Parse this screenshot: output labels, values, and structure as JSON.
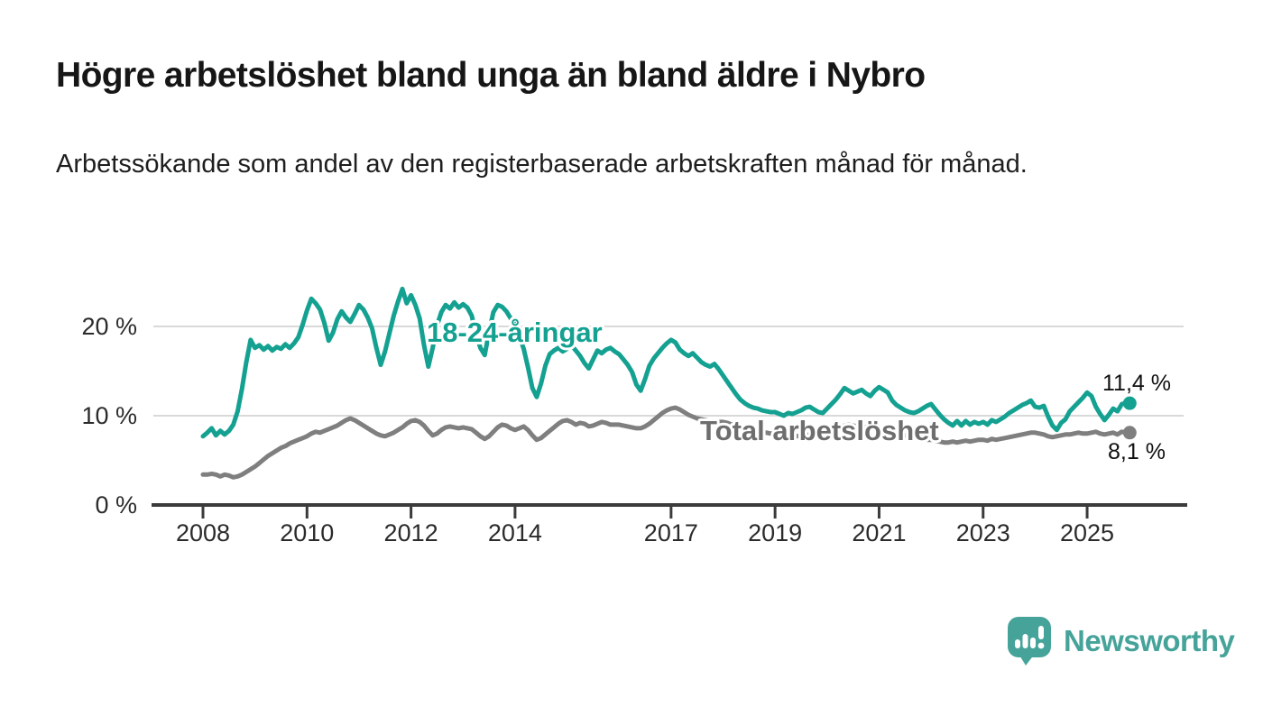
{
  "title": "Högre arbetslöshet bland unga än bland äldre i Nybro",
  "subtitle": "Arbetssökande som andel av den registerbaserade arbetskraften månad för månad.",
  "branding": {
    "logo_text": "Newsworthy",
    "logo_icon": "bar-chart-speech-bubble-icon",
    "logo_color": "#46a39a"
  },
  "colors": {
    "young_series": "#14a191",
    "total_series": "#7f7f7f",
    "total_label_text": "#6e6e6e",
    "gridline": "#d9d9d9",
    "axis": "#3b3b3b",
    "tick_text": "#2b2b2b"
  },
  "chart_data": {
    "type": "line",
    "frequency": "monthly",
    "x_start": "2008-01",
    "x_end": "2025-10",
    "x_tick_years": [
      2008,
      2010,
      2012,
      2014,
      2017,
      2019,
      2021,
      2023,
      2025
    ],
    "x_tick_labels": [
      "2008",
      "2010",
      "2012",
      "2014",
      "2017",
      "2019",
      "2021",
      "2023",
      "2025"
    ],
    "y_ticks": [
      {
        "value": 0,
        "label": "0 %"
      },
      {
        "value": 10,
        "label": "10 %"
      },
      {
        "value": 20,
        "label": "20 %"
      }
    ],
    "ylim": [
      0,
      25
    ],
    "grid": "horizontal",
    "legend_position": "inline-labels",
    "series": [
      {
        "name": "18-24-åringar",
        "color": "#14a191",
        "end_label": "11,4 %",
        "last_value": 11.4,
        "values": [
          7.7,
          8.1,
          8.6,
          7.8,
          8.3,
          7.9,
          8.3,
          9.0,
          10.5,
          13.0,
          16.0,
          18.5,
          17.6,
          17.9,
          17.4,
          17.8,
          17.3,
          17.7,
          17.5,
          18.0,
          17.6,
          18.1,
          18.8,
          20.2,
          21.8,
          23.1,
          22.6,
          21.9,
          20.4,
          18.4,
          19.3,
          20.8,
          21.7,
          21.0,
          20.5,
          21.4,
          22.4,
          21.9,
          21.0,
          19.8,
          17.6,
          15.7,
          17.2,
          19.2,
          21.2,
          22.8,
          24.2,
          22.6,
          23.5,
          22.4,
          20.9,
          17.9,
          15.5,
          17.6,
          20.1,
          21.6,
          22.4,
          22.0,
          22.7,
          22.1,
          22.5,
          22.1,
          21.2,
          19.2,
          17.6,
          16.8,
          19.4,
          21.6,
          22.4,
          22.2,
          21.7,
          20.9,
          20.3,
          18.9,
          17.5,
          15.4,
          13.1,
          12.1,
          13.6,
          15.6,
          16.9,
          17.3,
          17.6,
          17.2,
          17.5,
          17.9,
          17.3,
          16.7,
          15.9,
          15.3,
          16.3,
          17.3,
          17.0,
          17.4,
          17.6,
          17.2,
          16.9,
          16.3,
          15.7,
          14.9,
          13.5,
          12.8,
          14.1,
          15.6,
          16.4,
          17.0,
          17.6,
          18.1,
          18.5,
          18.2,
          17.4,
          17.0,
          16.7,
          17.0,
          16.5,
          16.0,
          15.7,
          15.5,
          15.8,
          15.2,
          14.5,
          13.8,
          13.1,
          12.4,
          11.8,
          11.4,
          11.1,
          10.9,
          10.8,
          10.6,
          10.5,
          10.4,
          10.4,
          10.2,
          10.0,
          10.3,
          10.2,
          10.4,
          10.6,
          10.9,
          11.0,
          10.7,
          10.4,
          10.3,
          10.8,
          11.3,
          11.8,
          12.4,
          13.1,
          12.8,
          12.5,
          12.7,
          12.9,
          12.5,
          12.2,
          12.8,
          13.2,
          12.9,
          12.6,
          11.7,
          11.2,
          10.9,
          10.6,
          10.4,
          10.3,
          10.5,
          10.8,
          11.1,
          11.3,
          10.7,
          10.1,
          9.6,
          9.2,
          8.9,
          9.4,
          8.9,
          9.4,
          9.0,
          9.3,
          9.1,
          9.3,
          9.0,
          9.5,
          9.3,
          9.6,
          9.9,
          10.3,
          10.6,
          10.9,
          11.2,
          11.4,
          11.7,
          11.0,
          10.9,
          11.1,
          9.9,
          8.9,
          8.4,
          9.2,
          9.6,
          10.5,
          11.0,
          11.5,
          12.0,
          12.6,
          12.2,
          11.0,
          10.2,
          9.5,
          10.1,
          10.8,
          10.5,
          11.3,
          11.4
        ]
      },
      {
        "name": "Total arbetslöshet",
        "color": "#7f7f7f",
        "end_label": "8,1 %",
        "last_value": 8.1,
        "values": [
          3.4,
          3.4,
          3.5,
          3.4,
          3.2,
          3.4,
          3.3,
          3.1,
          3.2,
          3.4,
          3.7,
          4.0,
          4.3,
          4.7,
          5.1,
          5.5,
          5.8,
          6.1,
          6.4,
          6.6,
          6.9,
          7.1,
          7.3,
          7.5,
          7.7,
          8.0,
          8.2,
          8.1,
          8.3,
          8.5,
          8.7,
          8.9,
          9.2,
          9.5,
          9.7,
          9.5,
          9.2,
          8.9,
          8.6,
          8.3,
          8.0,
          7.8,
          7.7,
          7.9,
          8.1,
          8.4,
          8.7,
          9.1,
          9.4,
          9.5,
          9.3,
          8.9,
          8.3,
          7.8,
          8.0,
          8.4,
          8.7,
          8.8,
          8.7,
          8.6,
          8.7,
          8.6,
          8.5,
          8.1,
          7.7,
          7.4,
          7.7,
          8.2,
          8.7,
          9.0,
          8.9,
          8.6,
          8.4,
          8.6,
          8.8,
          8.4,
          7.8,
          7.3,
          7.5,
          7.9,
          8.3,
          8.7,
          9.1,
          9.4,
          9.5,
          9.3,
          9.0,
          9.2,
          9.1,
          8.8,
          8.9,
          9.1,
          9.3,
          9.2,
          9.0,
          9.0,
          9.0,
          8.9,
          8.8,
          8.7,
          8.6,
          8.6,
          8.8,
          9.1,
          9.5,
          9.9,
          10.3,
          10.6,
          10.8,
          10.9,
          10.7,
          10.4,
          10.1,
          9.9,
          9.7,
          9.6,
          9.5,
          9.4,
          9.3,
          9.3,
          9.3,
          9.2,
          9.0,
          8.8,
          8.6,
          8.5,
          8.4,
          8.3,
          8.2,
          8.1,
          8.1,
          8.0,
          8.0,
          7.9,
          7.9,
          7.8,
          7.8,
          7.7,
          7.8,
          7.8,
          7.9,
          7.9,
          8.0,
          8.0,
          8.1,
          8.2,
          8.4,
          8.7,
          8.9,
          9.0,
          8.9,
          8.8,
          8.8,
          8.7,
          8.6,
          8.6,
          8.5,
          8.5,
          8.4,
          8.2,
          8.1,
          7.9,
          7.8,
          7.7,
          7.6,
          7.5,
          7.4,
          7.3,
          7.3,
          7.2,
          7.1,
          7.0,
          7.0,
          7.1,
          7.0,
          7.1,
          7.2,
          7.1,
          7.2,
          7.3,
          7.3,
          7.2,
          7.4,
          7.3,
          7.4,
          7.5,
          7.6,
          7.7,
          7.8,
          7.9,
          8.0,
          8.1,
          8.1,
          8.0,
          7.9,
          7.7,
          7.6,
          7.7,
          7.8,
          7.9,
          7.9,
          8.0,
          8.1,
          8.0,
          8.0,
          8.1,
          8.2,
          8.0,
          7.9,
          8.0,
          8.1,
          7.9,
          8.2,
          8.1
        ]
      }
    ]
  }
}
